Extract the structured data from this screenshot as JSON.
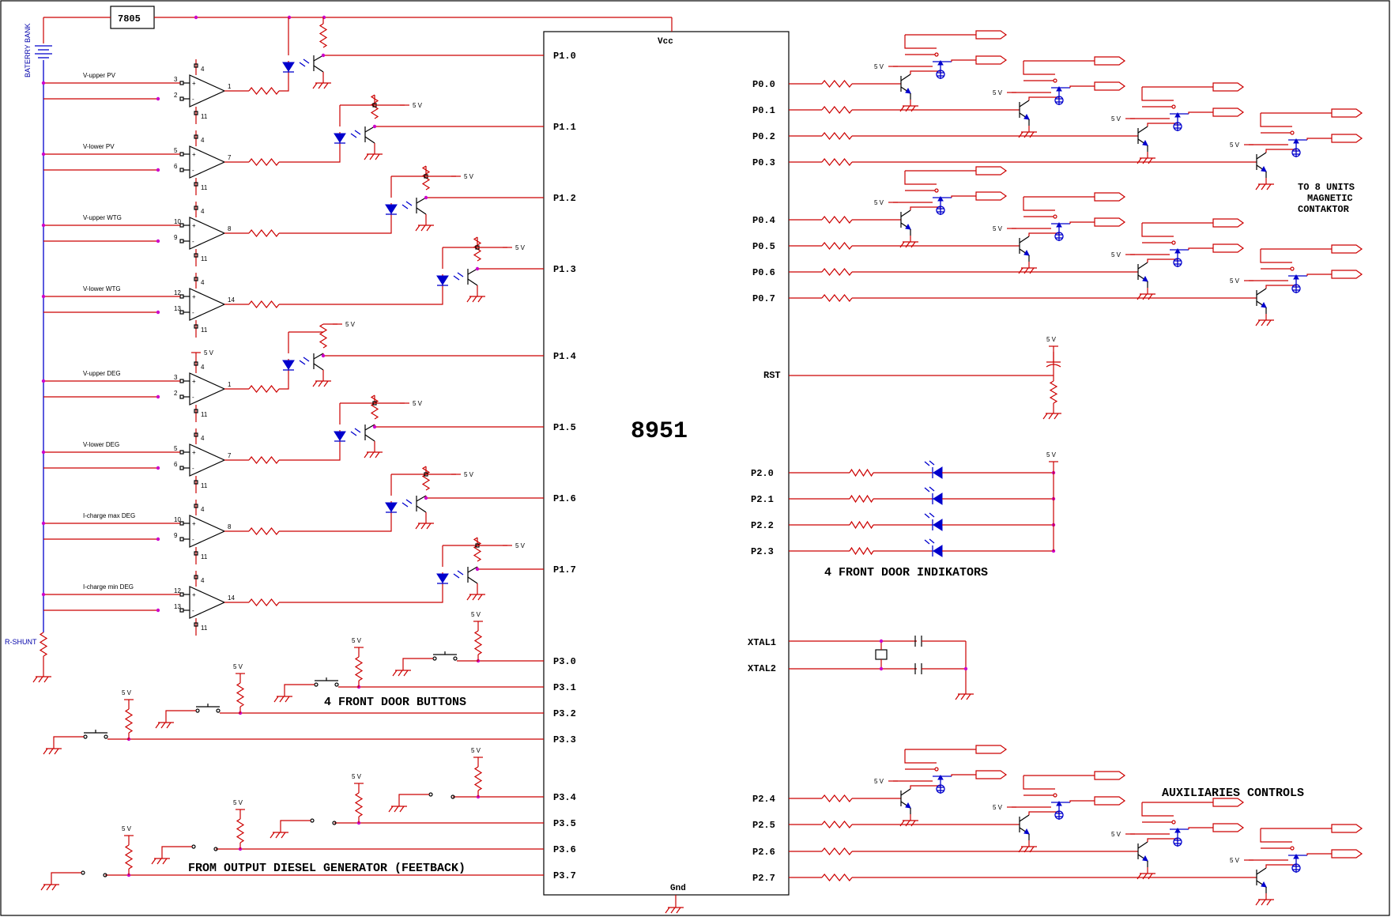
{
  "regulator": "7805",
  "battery_label": "BATERRY BANK",
  "shunt_label": "R-SHUNT",
  "mcu": {
    "name": "8951",
    "vcc": "Vcc",
    "gnd": "Gnd",
    "left_pins": [
      "P1.0",
      "P1.1",
      "P1.2",
      "P1.3",
      "P1.4",
      "P1.5",
      "P1.6",
      "P1.7",
      "P3.0",
      "P3.1",
      "P3.2",
      "P3.3",
      "P3.4",
      "P3.5",
      "P3.6",
      "P3.7"
    ],
    "right_pins_p0": [
      "P0.0",
      "P0.1",
      "P0.2",
      "P0.3",
      "P0.4",
      "P0.5",
      "P0.6",
      "P0.7"
    ],
    "rst": "RST",
    "p2_leds": [
      "P2.0",
      "P2.1",
      "P2.2",
      "P2.3"
    ],
    "xtal": [
      "XTAL1",
      "XTAL2"
    ],
    "p2_aux": [
      "P2.4",
      "P2.5",
      "P2.6",
      "P2.7"
    ]
  },
  "comparators": [
    {
      "label": "V-upper PV",
      "pins": [
        "3",
        "2"
      ],
      "out": "1"
    },
    {
      "label": "V-lower PV",
      "pins": [
        "5",
        "6"
      ],
      "out": "7"
    },
    {
      "label": "V-upper WTG",
      "pins": [
        "10",
        "9"
      ],
      "out": "8"
    },
    {
      "label": "V-lower WTG",
      "pins": [
        "12",
        "13"
      ],
      "out": "14"
    },
    {
      "label": "V-upper DEG",
      "pins": [
        "3",
        "2"
      ],
      "out": "1"
    },
    {
      "label": "V-lower DEG",
      "pins": [
        "5",
        "6"
      ],
      "out": "7"
    },
    {
      "label": "I-charge max DEG",
      "pins": [
        "10",
        "9"
      ],
      "out": "8"
    },
    {
      "label": "I-charge min DEG",
      "pins": [
        "12",
        "13"
      ],
      "out": "14"
    }
  ],
  "supply_pins": {
    "vplus": "4",
    "vminus": "11"
  },
  "vlabel": "5 V",
  "labels": {
    "contaktor": [
      "TO 8 UNITS",
      "MAGNETIC",
      "CONTAKTOR"
    ],
    "indikators": "4 FRONT DOOR INDIKATORS",
    "buttons": "4 FRONT DOOR BUTTONS",
    "feedback": "FROM OUTPUT DIESEL GENERATOR (FEETBACK)",
    "auxiliaries": "AUXILIARIES CONTROLS"
  }
}
